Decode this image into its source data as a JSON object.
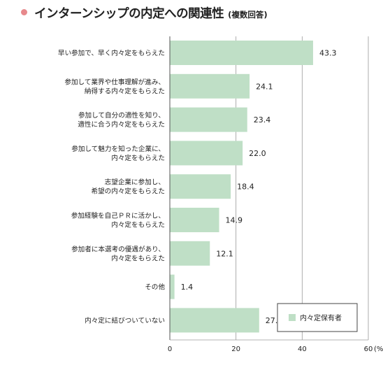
{
  "title": "インターンシップの内定への関連性",
  "subtitle": "(複数回答)",
  "colors": {
    "bar": "#bfdfc6",
    "title_dot": "#e7898c",
    "grid": "#9a9a9a",
    "axis": "#555555"
  },
  "chart_data": {
    "type": "bar",
    "orientation": "horizontal",
    "unit_label": "(%)",
    "xlim": [
      0,
      60
    ],
    "xticks": [
      0,
      20,
      40,
      60
    ],
    "grid": true,
    "legend_position": "bottom-right",
    "series": [
      {
        "name": "内々定保有者",
        "color": "#bfdfc6",
        "values": [
          43.3,
          24.1,
          23.4,
          22.0,
          18.4,
          14.9,
          12.1,
          1.4,
          27.0
        ],
        "value_labels": [
          "43.3",
          "24.1",
          "23.4",
          "22.0",
          "18.4",
          "14.9",
          "12.1",
          "1.4",
          "27.0"
        ]
      }
    ],
    "categories": [
      [
        "早い参加で、早く内々定をもらえた"
      ],
      [
        "参加して業界や仕事理解が進み、",
        "納得する内々定をもらえた"
      ],
      [
        "参加して自分の適性を知り、",
        "適性に合う内々定をもらえた"
      ],
      [
        "参加して魅力を知った企業に、",
        "内々定をもらえた"
      ],
      [
        "志望企業に参加し、",
        "希望の内々定をもらえた"
      ],
      [
        "参加経験を自己ＰＲに活かし、",
        "内々定をもらえた"
      ],
      [
        "参加者に本選考の優遇があり、",
        "内々定をもらえた"
      ],
      [
        "その他"
      ],
      [
        "内々定に結びついていない"
      ]
    ]
  }
}
